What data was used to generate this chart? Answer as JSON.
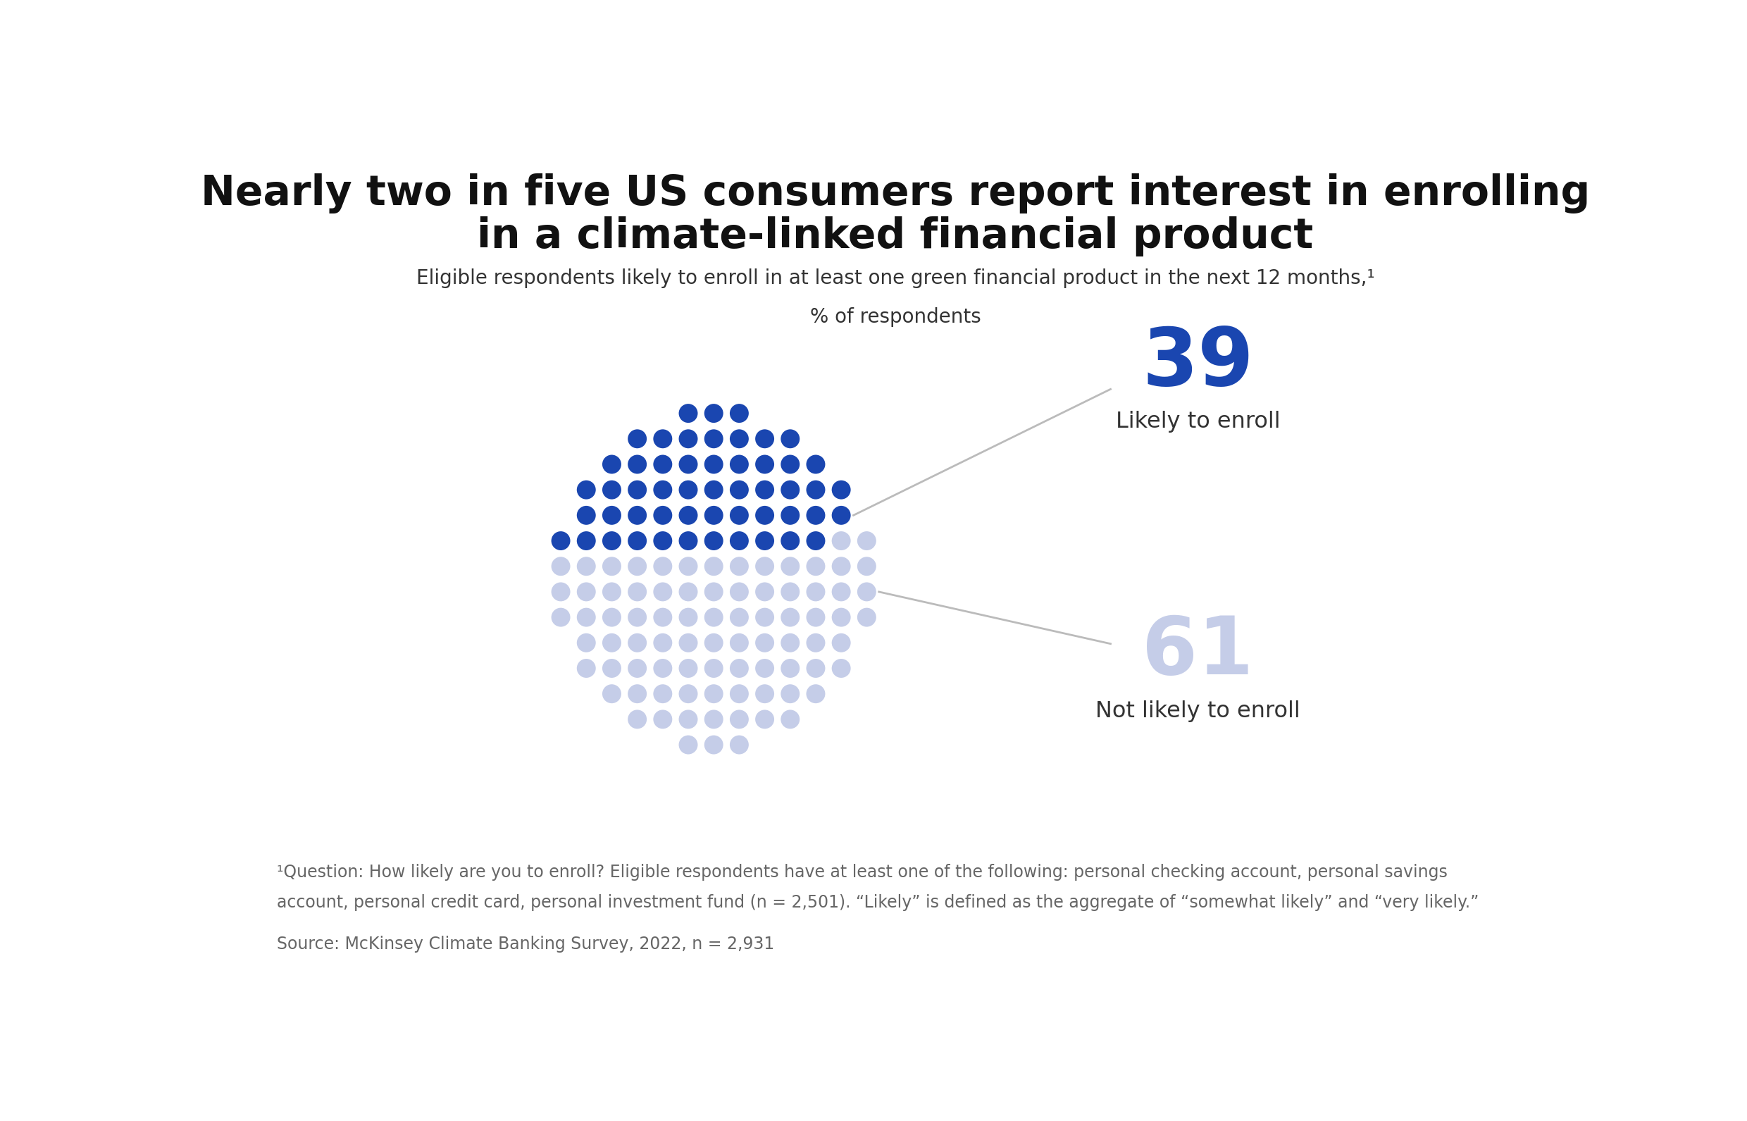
{
  "title_line1": "Nearly two in five US consumers report interest in enrolling",
  "title_line2": "in a climate-linked financial product",
  "subtitle_line1": "Eligible respondents likely to enroll in at least one green financial product in the next 12 months,¹",
  "subtitle_line2": "% of respondents",
  "pct_likely": 39,
  "pct_not_likely": 61,
  "label_likely": "Likely to enroll",
  "label_not_likely": "Not likely to enroll",
  "color_likely": "#1a46b0",
  "color_not_likely": "#c5cde8",
  "footnote_line1": "¹Question: How likely are you to enroll? Eligible respondents have at least one of the following: personal checking account, personal savings",
  "footnote_line2": "account, personal credit card, personal investment fund (n = 2,501). “Likely” is defined as the aggregate of “somewhat likely” and “very likely.”",
  "source": "Source: McKinsey Climate Banking Survey, 2022, n = 2,931",
  "background_color": "#ffffff",
  "title_fontsize": 42,
  "subtitle_fontsize": 20,
  "label_fontsize": 23,
  "number_fontsize": 82,
  "footnote_fontsize": 17,
  "source_fontsize": 17
}
